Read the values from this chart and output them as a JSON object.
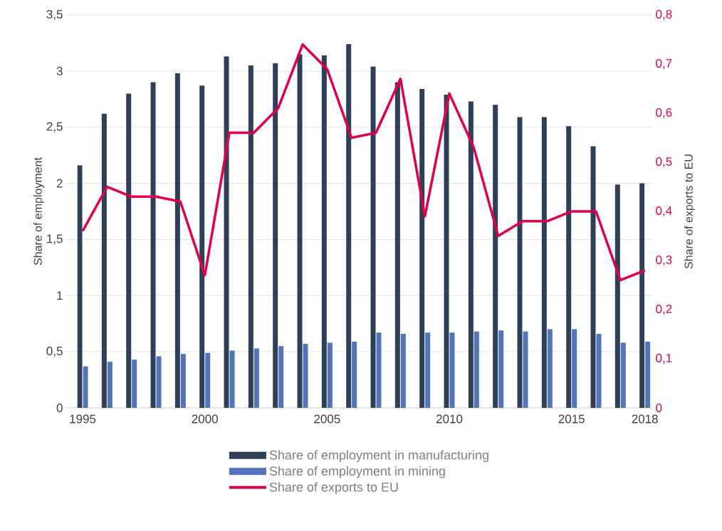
{
  "chart_data": {
    "type": "bar",
    "legend": "bottom",
    "grid": "y",
    "categories": [
      "1995",
      null,
      null,
      null,
      null,
      "2000",
      null,
      null,
      null,
      null,
      "2005",
      null,
      null,
      null,
      null,
      "2010",
      null,
      null,
      null,
      null,
      "2015",
      null,
      null,
      "2018"
    ],
    "series": [
      {
        "name": "Share of employment in manufacturing",
        "color": "#2f3f58",
        "values": [
          2.16,
          2.62,
          2.8,
          2.9,
          2.98,
          2.87,
          3.13,
          3.05,
          3.07,
          3.15,
          3.14,
          3.24,
          3.04,
          2.9,
          2.84,
          2.79,
          2.73,
          2.7,
          2.59,
          2.59,
          2.51,
          2.33,
          1.99,
          2.0
        ]
      },
      {
        "name": "Share of employment in mining",
        "color": "#5174bb",
        "values": [
          0.37,
          0.41,
          0.43,
          0.46,
          0.48,
          0.49,
          0.51,
          0.53,
          0.55,
          0.57,
          0.58,
          0.59,
          0.67,
          0.66,
          0.67,
          0.67,
          0.68,
          0.69,
          0.68,
          0.7,
          0.7,
          0.66,
          0.58,
          0.59
        ]
      },
      {
        "name": "Share of exports to EU",
        "type": "line",
        "axis": "y2",
        "color": "#e2004a",
        "values": [
          0.36,
          0.45,
          0.43,
          0.43,
          0.42,
          0.27,
          0.56,
          0.56,
          0.61,
          0.74,
          0.69,
          0.55,
          0.56,
          0.67,
          0.39,
          0.64,
          0.53,
          0.35,
          0.38,
          0.38,
          0.4,
          0.4,
          0.26,
          0.28
        ]
      }
    ],
    "ylabel": "Share of employment",
    "y2label": "Share of exports to EU",
    "ylim": [
      0,
      3.5
    ],
    "yticks": [
      0,
      {
        "value": 0.5,
        "label": "0,5"
      },
      1,
      {
        "value": 1.5,
        "label": "1,5"
      },
      2,
      {
        "value": 2.5,
        "label": "2,5"
      },
      3,
      {
        "value": 3.5,
        "label": "3,5"
      }
    ],
    "y2lim": [
      0,
      0.8
    ],
    "y2ticks": [
      0,
      {
        "value": 0.1,
        "label": "0,1"
      },
      {
        "value": 0.2,
        "label": "0,2"
      },
      {
        "value": 0.3,
        "label": "0,3"
      },
      {
        "value": 0.4,
        "label": "0,4"
      },
      {
        "value": 0.5,
        "label": "0,5"
      },
      {
        "value": 0.6,
        "label": "0,6"
      },
      {
        "value": 0.7,
        "label": "0,7"
      },
      {
        "value": 0.8,
        "label": "0,8"
      }
    ]
  }
}
